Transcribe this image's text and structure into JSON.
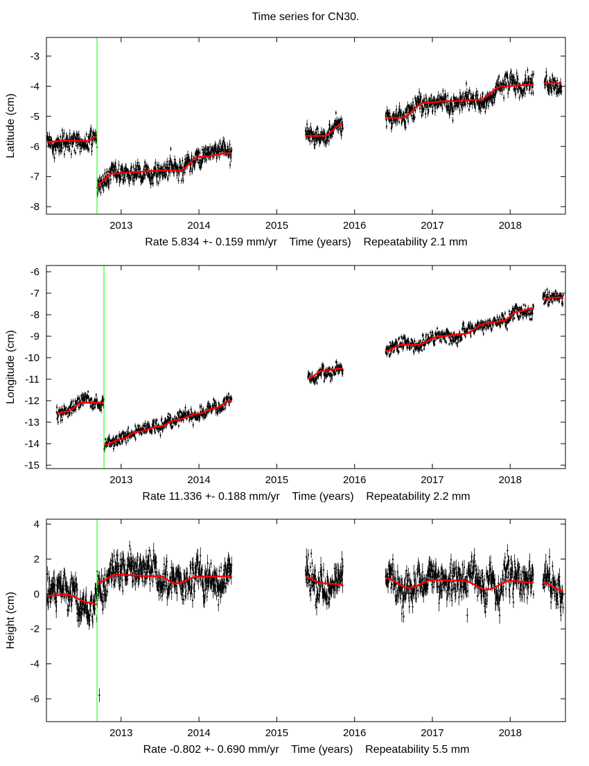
{
  "chart_data": {
    "title": "Time series for CN30.",
    "type": "scatter",
    "xlim": [
      2012.04,
      2018.71
    ],
    "xticks": [
      2013,
      2014,
      2015,
      2016,
      2017,
      2018
    ],
    "colors": {
      "data": "#000000",
      "model": "#ff0000",
      "offset": "#00ff00"
    },
    "panels": [
      {
        "ylabel": "Latitude (cm)",
        "xlabel": "Rate 5.834 +- 0.159 mm/yr    Time (years)    Repeatability 2.1 mm",
        "ylim": [
          -8.25,
          -2.38
        ],
        "yticks": [
          -3,
          -4,
          -5,
          -6,
          -7,
          -8
        ],
        "offset_epoch": 2012.69,
        "scatter": 0.18,
        "segments": [
          [
            [
              2012.05,
              -5.85
            ],
            [
              2012.3,
              -5.8
            ],
            [
              2012.55,
              -5.82
            ],
            [
              2012.69,
              -5.68
            ]
          ],
          [
            [
              2012.69,
              -7.25
            ],
            [
              2012.9,
              -6.9
            ],
            [
              2013.2,
              -6.85
            ],
            [
              2013.5,
              -6.8
            ],
            [
              2013.75,
              -6.8
            ],
            [
              2014.0,
              -6.35
            ],
            [
              2014.42,
              -6.22
            ]
          ],
          [
            [
              2015.37,
              -5.65
            ],
            [
              2015.6,
              -5.65
            ],
            [
              2015.85,
              -5.25
            ]
          ],
          [
            [
              2016.4,
              -5.05
            ],
            [
              2016.6,
              -5.05
            ],
            [
              2016.9,
              -4.55
            ],
            [
              2017.2,
              -4.5
            ],
            [
              2017.6,
              -4.45
            ],
            [
              2017.9,
              -4.0
            ],
            [
              2018.3,
              -3.95
            ]
          ],
          [
            [
              2018.44,
              -3.9
            ],
            [
              2018.66,
              -3.9
            ]
          ]
        ]
      },
      {
        "ylabel": "Longitude (cm)",
        "xlabel": "Rate 11.336 +- 0.188 mm/yr    Time (years)    Repeatability 2.2 mm",
        "ylim": [
          -15.16,
          -5.71
        ],
        "yticks": [
          -6,
          -7,
          -8,
          -9,
          -10,
          -11,
          -12,
          -13,
          -14,
          -15
        ],
        "offset_epoch": 2012.78,
        "scatter": 0.17,
        "segments": [
          [
            [
              2012.17,
              -12.6
            ],
            [
              2012.3,
              -12.5
            ],
            [
              2012.5,
              -12.1
            ],
            [
              2012.78,
              -12.1
            ]
          ],
          [
            [
              2012.78,
              -14.05
            ],
            [
              2013.0,
              -13.8
            ],
            [
              2013.2,
              -13.45
            ],
            [
              2013.5,
              -13.2
            ],
            [
              2013.7,
              -12.9
            ],
            [
              2014.0,
              -12.6
            ],
            [
              2014.2,
              -12.35
            ],
            [
              2014.42,
              -12.0
            ]
          ],
          [
            [
              2015.4,
              -10.95
            ],
            [
              2015.6,
              -10.6
            ],
            [
              2015.85,
              -10.5
            ]
          ],
          [
            [
              2016.4,
              -9.7
            ],
            [
              2016.6,
              -9.4
            ],
            [
              2016.8,
              -9.4
            ],
            [
              2017.1,
              -9.0
            ],
            [
              2017.4,
              -8.9
            ],
            [
              2017.7,
              -8.4
            ],
            [
              2017.9,
              -8.3
            ],
            [
              2018.1,
              -7.85
            ],
            [
              2018.3,
              -7.7
            ]
          ],
          [
            [
              2018.42,
              -7.3
            ],
            [
              2018.55,
              -7.2
            ],
            [
              2018.68,
              -7.2
            ]
          ]
        ]
      },
      {
        "ylabel": "Height (cm)",
        "xlabel": "Rate -0.802 +- 0.690 mm/yr    Time (years)    Repeatability 5.5 mm",
        "ylim": [
          -7.31,
          4.28
        ],
        "yticks": [
          4,
          2,
          0,
          -2,
          -4,
          -6
        ],
        "offset_epoch": 2012.69,
        "scatter": 0.55,
        "outliers": [
          [
            2012.72,
            -5.8
          ]
        ],
        "segments": [
          [
            [
              2012.05,
              -0.1
            ],
            [
              2012.3,
              -0.05
            ],
            [
              2012.6,
              -0.5
            ],
            [
              2012.69,
              -0.6
            ]
          ],
          [
            [
              2012.69,
              0.65
            ],
            [
              2012.95,
              1.1
            ],
            [
              2013.5,
              1.0
            ],
            [
              2013.7,
              0.6
            ],
            [
              2014.0,
              1.0
            ],
            [
              2014.42,
              1.0
            ]
          ],
          [
            [
              2015.37,
              0.95
            ],
            [
              2015.6,
              0.6
            ],
            [
              2015.85,
              0.55
            ]
          ],
          [
            [
              2016.4,
              0.9
            ],
            [
              2016.7,
              0.35
            ],
            [
              2017.0,
              0.8
            ],
            [
              2017.4,
              0.75
            ],
            [
              2017.7,
              0.25
            ],
            [
              2018.0,
              0.75
            ],
            [
              2018.3,
              0.65
            ]
          ],
          [
            [
              2018.42,
              0.65
            ],
            [
              2018.68,
              0.2
            ]
          ]
        ]
      }
    ]
  }
}
